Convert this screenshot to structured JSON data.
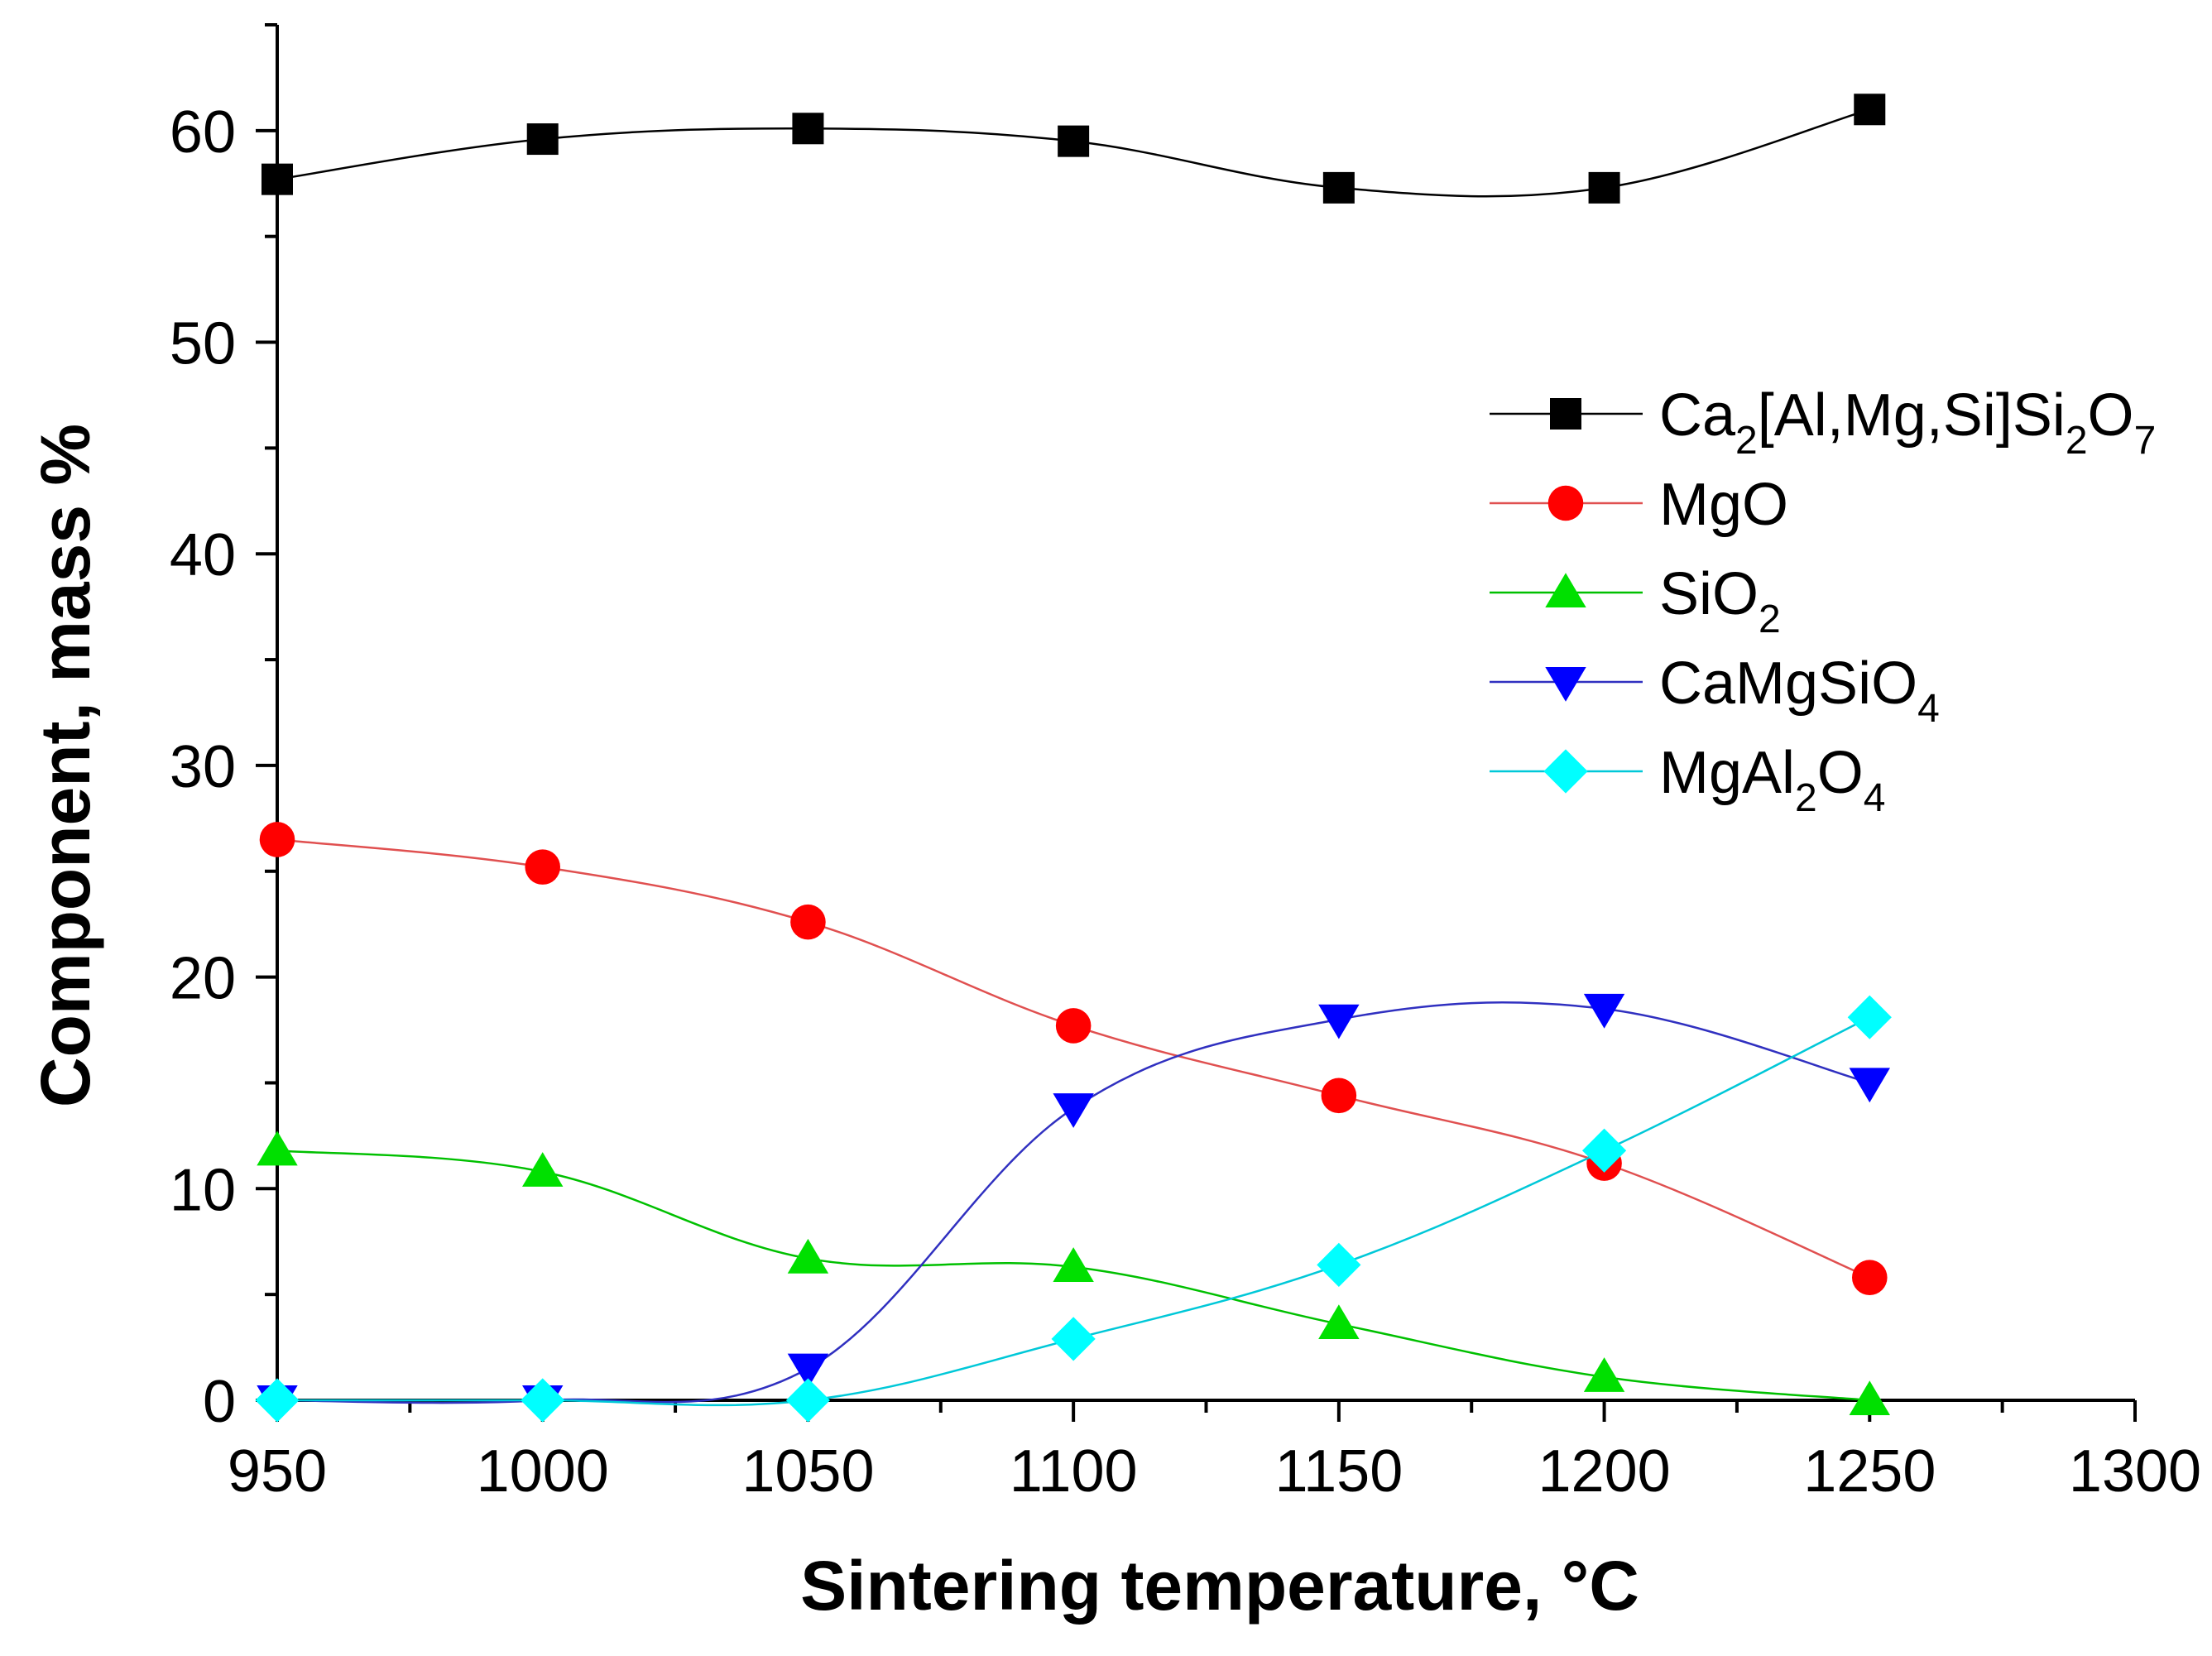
{
  "chart_data": {
    "type": "line",
    "title": "",
    "xlabel": "Sintering temperature, °C",
    "ylabel": "Component, mass %",
    "xlim": [
      950,
      1300
    ],
    "ylim": [
      0,
      65
    ],
    "x_ticks": [
      950,
      1000,
      1050,
      1100,
      1150,
      1200,
      1250,
      1300
    ],
    "y_ticks": [
      0,
      10,
      20,
      30,
      40,
      50,
      60
    ],
    "grid": false,
    "legend_position": "right",
    "x": [
      950,
      1000,
      1050,
      1100,
      1150,
      1200,
      1250
    ],
    "series": [
      {
        "name": "Ca2[Al,Mg,Si]Si2O7",
        "label_parts": [
          {
            "t": "Ca",
            "s": "normal"
          },
          {
            "t": "2",
            "s": "sub"
          },
          {
            "t": "[Al,Mg,Si]Si",
            "s": "normal"
          },
          {
            "t": "2",
            "s": "sub"
          },
          {
            "t": "O",
            "s": "normal"
          },
          {
            "t": "7",
            "s": "sub"
          }
        ],
        "marker": "square",
        "marker_color": "#000000",
        "line_color": "#000000",
        "values": [
          57.7,
          59.6,
          60.1,
          59.5,
          57.3,
          57.3,
          61.0
        ]
      },
      {
        "name": "MgO",
        "label_parts": [
          {
            "t": "MgO",
            "s": "normal"
          }
        ],
        "marker": "circle",
        "marker_color": "#ff0000",
        "line_color": "#e05050",
        "values": [
          26.5,
          25.2,
          22.6,
          17.7,
          14.4,
          11.2,
          5.8
        ]
      },
      {
        "name": "SiO2",
        "label_parts": [
          {
            "t": "SiO",
            "s": "normal"
          },
          {
            "t": "2",
            "s": "sub"
          }
        ],
        "marker": "triangle-up",
        "marker_color": "#00e000",
        "line_color": "#00c000",
        "values": [
          11.8,
          10.8,
          6.7,
          6.3,
          3.6,
          1.1,
          0.0
        ]
      },
      {
        "name": "CaMgSiO4",
        "label_parts": [
          {
            "t": "CaMgSiO",
            "s": "normal"
          },
          {
            "t": "4",
            "s": "sub"
          }
        ],
        "marker": "triangle-down",
        "marker_color": "#0000ff",
        "line_color": "#3030c0",
        "values": [
          0.0,
          0.0,
          1.5,
          13.8,
          18.0,
          18.5,
          15.0
        ]
      },
      {
        "name": "MgAl2O4",
        "label_parts": [
          {
            "t": "MgAl",
            "s": "normal"
          },
          {
            "t": "2",
            "s": "sub"
          },
          {
            "t": "O",
            "s": "normal"
          },
          {
            "t": "4",
            "s": "sub"
          }
        ],
        "marker": "diamond",
        "marker_color": "#00ffff",
        "line_color": "#00c8d8",
        "values": [
          0.0,
          0.0,
          0.0,
          2.9,
          6.4,
          11.8,
          18.1
        ]
      }
    ]
  }
}
